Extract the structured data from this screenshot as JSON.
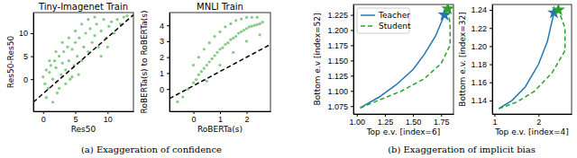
{
  "chart_data": [
    {
      "type": "scatter",
      "title": "Tiny-Imagenet Train",
      "x_label": "Res50",
      "y_label": "Res50-Res50",
      "xlim": [
        -1.5,
        14
      ],
      "ylim": [
        -7,
        14.5
      ],
      "xticks": [
        0,
        5,
        10
      ],
      "yticks": [
        0,
        5,
        10
      ],
      "series": [
        {
          "type": "scatter",
          "color": "#5cb85c",
          "x": [
            0,
            0.3,
            0.5,
            0.8,
            1,
            1.2,
            1.5,
            1.8,
            2,
            2.2,
            2.5,
            2.8,
            3,
            3.2,
            3.5,
            3.8,
            4,
            4.2,
            4.5,
            4.8,
            5,
            5.3,
            5.6,
            6,
            6.3,
            6.6,
            7,
            7.3,
            7.6,
            8,
            8.3,
            8.6,
            9,
            9.4,
            9.8,
            10.2,
            10.6,
            11,
            11.5,
            12,
            12.5,
            13,
            1,
            2,
            3,
            4,
            5,
            6,
            7,
            8,
            9,
            10,
            0.5,
            1.5,
            2.5,
            3.5,
            4.5,
            5.5
          ],
          "values": [
            0.5,
            -1,
            2,
            -2,
            1.5,
            3,
            0,
            4,
            2.5,
            -3,
            5,
            1,
            3.5,
            6,
            2,
            7,
            4,
            0,
            6.5,
            3,
            8,
            5,
            9,
            4,
            7,
            10,
            6,
            11,
            8,
            9.5,
            12,
            7,
            10.5,
            13,
            9,
            11.5,
            12.5,
            10,
            13,
            12,
            13.5,
            13.8,
            4,
            6,
            8,
            9,
            10.5,
            12,
            13,
            13.5,
            5,
            7,
            -4,
            -5,
            -2,
            -1,
            0.5,
            1
          ]
        },
        {
          "type": "line",
          "color": "#000000",
          "line_style": "dashed",
          "x": [
            -1.5,
            14
          ],
          "values": [
            -5,
            14
          ]
        }
      ]
    },
    {
      "type": "scatter",
      "title": "MNLI Train",
      "x_label": "RoBERTa(s)",
      "y_label": "RoBERTa(s) to RoBERTa(s)",
      "xlim": [
        -0.9,
        2.9
      ],
      "ylim": [
        -1.4,
        4.8
      ],
      "xticks": [
        0,
        1,
        2
      ],
      "yticks": [
        0,
        1,
        2,
        3,
        4
      ],
      "series": [
        {
          "type": "scatter",
          "color": "#5cb85c",
          "x": [
            -0.6,
            -0.4,
            -0.2,
            0,
            0.1,
            0.2,
            0.3,
            0.4,
            0.5,
            0.6,
            0.7,
            0.8,
            0.9,
            1,
            1.1,
            1.2,
            1.3,
            1.4,
            1.5,
            1.6,
            1.7,
            1.8,
            1.9,
            2,
            2.1,
            2.2,
            2.3,
            2.4,
            2.5,
            2.6,
            0,
            0.2,
            0.4,
            0.6,
            0.8,
            1,
            1.2,
            1.4,
            1.6,
            1.8,
            2,
            2.2,
            2.4,
            0.5,
            1,
            1.5,
            2,
            2.5
          ],
          "values": [
            -0.8,
            -0.5,
            0,
            0.4,
            0.6,
            0.9,
            1.1,
            1.3,
            1.5,
            1.7,
            1.9,
            2.1,
            2.3,
            2.5,
            2.6,
            2.8,
            2.9,
            3.1,
            3.2,
            3.3,
            3.5,
            3.6,
            3.7,
            3.8,
            3.9,
            3.95,
            4.0,
            4.05,
            4.1,
            4.2,
            1.5,
            2,
            2.5,
            2.9,
            3.3,
            3.6,
            3.9,
            4.1,
            4.3,
            4.4,
            4.5,
            4.5,
            4.5,
            0.5,
            1.5,
            2.3,
            3,
            3.4
          ]
        },
        {
          "type": "line",
          "color": "#000000",
          "line_style": "dashed",
          "x": [
            -0.9,
            2.9
          ],
          "values": [
            -0.6,
            2.8
          ]
        }
      ]
    },
    {
      "type": "line",
      "x_label": "Top e.v. [index=6]",
      "y_label": "Bottom e.v [index=52]",
      "legend": "upper left",
      "xlim": [
        0.97,
        1.86
      ],
      "ylim": [
        1.062,
        1.242
      ],
      "xticks": [
        {
          "value": 1.0,
          "label": "1.00"
        },
        1.25,
        {
          "value": 1.5,
          "label": "1.50"
        },
        1.75
      ],
      "yticks": [
        1.075,
        {
          "value": 1.1,
          "label": "1.100"
        },
        1.125,
        {
          "value": 1.15,
          "label": "1.150"
        },
        1.175,
        {
          "value": 1.2,
          "label": "1.200"
        },
        1.225
      ],
      "series": [
        {
          "name": "Teacher",
          "color": "#1f77b4",
          "line_style": "solid",
          "marker": "star",
          "x": [
            1.03,
            1.2,
            1.35,
            1.5,
            1.6,
            1.7,
            1.78
          ],
          "values": [
            1.072,
            1.09,
            1.11,
            1.135,
            1.16,
            1.19,
            1.225
          ]
        },
        {
          "name": "Student",
          "color": "#2ca02c",
          "line_style": "dashed",
          "marker": "star",
          "x": [
            1.03,
            1.2,
            1.4,
            1.6,
            1.75,
            1.83,
            1.83,
            1.81
          ],
          "values": [
            1.072,
            1.085,
            1.1,
            1.12,
            1.145,
            1.175,
            1.21,
            1.235
          ]
        }
      ]
    },
    {
      "type": "line",
      "x_label": "Top e.v. [index=4]",
      "y_label": "Bottom e.v. [index=32]",
      "xlim": [
        0.95,
        2.75
      ],
      "ylim": [
        1.125,
        1.246
      ],
      "xticks": [
        1,
        2
      ],
      "yticks": [
        1.14,
        1.16,
        1.18,
        {
          "value": 1.2,
          "label": "1.20"
        },
        1.22,
        1.24
      ],
      "series": [
        {
          "color": "#1f77b4",
          "line_style": "solid",
          "marker": "star",
          "x": [
            1.1,
            1.4,
            1.7,
            2.0,
            2.2,
            2.35
          ],
          "values": [
            1.131,
            1.14,
            1.155,
            1.18,
            1.205,
            1.237
          ]
        },
        {
          "color": "#2ca02c",
          "line_style": "dashed",
          "marker": "star",
          "x": [
            1.1,
            1.5,
            1.9,
            2.3,
            2.6,
            2.6,
            2.45
          ],
          "values": [
            1.131,
            1.138,
            1.15,
            1.17,
            1.195,
            1.22,
            1.24
          ]
        }
      ]
    }
  ],
  "captions": [
    "(a) Exaggeration of confidence",
    "(b) Exaggeration of implicit bias"
  ]
}
